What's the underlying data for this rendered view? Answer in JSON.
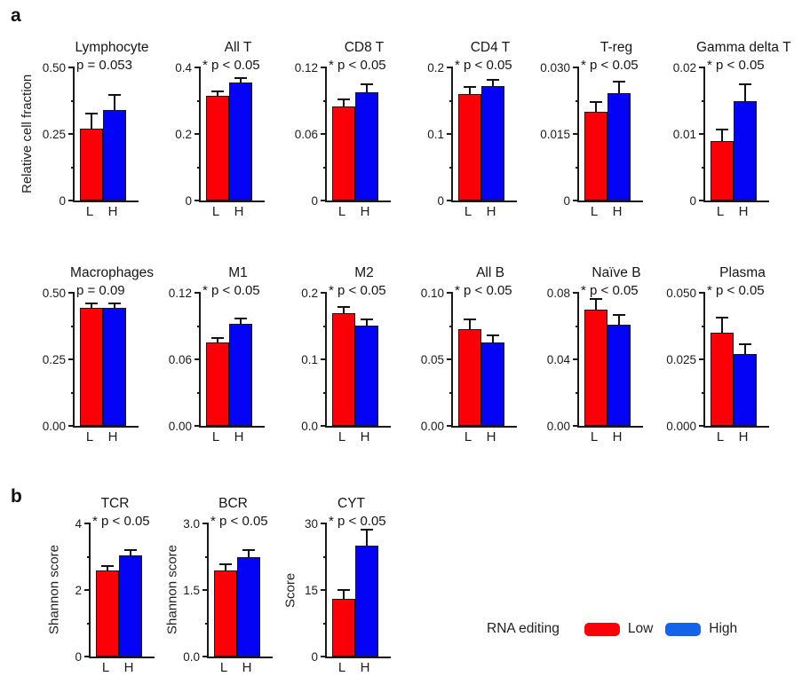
{
  "figure": {
    "panel_a": "a",
    "panel_b": "b"
  },
  "colors": {
    "low": "#fb0006",
    "high": "#0503f6",
    "axis": "#1a1a1a",
    "error_bar": "#111111",
    "legend_low_swatch": "#fb0006",
    "legend_high_swatch": "#1463e8"
  },
  "legend": {
    "title": "RNA editing",
    "items": [
      {
        "label": "Low",
        "color": "#fb0006"
      },
      {
        "label": "High",
        "color": "#1463e8"
      }
    ]
  },
  "group_labels": [
    "L",
    "H"
  ],
  "chart_data": [
    {
      "panel": "a",
      "row": "a1",
      "type": "bar",
      "title": "Lymphocyte",
      "significance": "p = 0.053",
      "ylabel": "Relative cell fraction",
      "ylim": [
        0,
        0.5
      ],
      "yticks": [
        {
          "value": 0,
          "label": "0"
        },
        {
          "value": 0.25,
          "label": "0.25"
        },
        {
          "value": 0.5,
          "label": "0.50"
        }
      ],
      "categories": [
        "L",
        "H"
      ],
      "bars": [
        {
          "category": "L",
          "group": "Low",
          "value": 0.27,
          "error": 0.06
        },
        {
          "category": "H",
          "group": "High",
          "value": 0.34,
          "error": 0.06
        }
      ]
    },
    {
      "panel": "a",
      "row": "a1",
      "type": "bar",
      "title": "All T",
      "significance": "* p < 0.05",
      "ylabel": "",
      "ylim": [
        0,
        0.4
      ],
      "yticks": [
        {
          "value": 0,
          "label": "0"
        },
        {
          "value": 0.2,
          "label": "0.2"
        },
        {
          "value": 0.4,
          "label": "0.4"
        }
      ],
      "categories": [
        "L",
        "H"
      ],
      "bars": [
        {
          "category": "L",
          "group": "Low",
          "value": 0.315,
          "error": 0.015
        },
        {
          "category": "H",
          "group": "High",
          "value": 0.355,
          "error": 0.015
        }
      ]
    },
    {
      "panel": "a",
      "row": "a1",
      "type": "bar",
      "title": "CD8 T",
      "significance": "* p < 0.05",
      "ylabel": "",
      "ylim": [
        0,
        0.12
      ],
      "yticks": [
        {
          "value": 0,
          "label": "0"
        },
        {
          "value": 0.06,
          "label": "0.06"
        },
        {
          "value": 0.12,
          "label": "0.12"
        }
      ],
      "categories": [
        "L",
        "H"
      ],
      "bars": [
        {
          "category": "L",
          "group": "Low",
          "value": 0.085,
          "error": 0.007
        },
        {
          "category": "H",
          "group": "High",
          "value": 0.098,
          "error": 0.008
        }
      ]
    },
    {
      "panel": "a",
      "row": "a1",
      "type": "bar",
      "title": "CD4 T",
      "significance": "* p < 0.05",
      "ylabel": "",
      "ylim": [
        0,
        0.2
      ],
      "yticks": [
        {
          "value": 0,
          "label": "0"
        },
        {
          "value": 0.1,
          "label": "0.1"
        },
        {
          "value": 0.2,
          "label": "0.2"
        }
      ],
      "categories": [
        "L",
        "H"
      ],
      "bars": [
        {
          "category": "L",
          "group": "Low",
          "value": 0.16,
          "error": 0.012
        },
        {
          "category": "H",
          "group": "High",
          "value": 0.172,
          "error": 0.011
        }
      ]
    },
    {
      "panel": "a",
      "row": "a1",
      "type": "bar",
      "title": "T-reg",
      "significance": "* p < 0.05",
      "ylabel": "",
      "ylim": [
        0,
        0.03
      ],
      "yticks": [
        {
          "value": 0,
          "label": "0"
        },
        {
          "value": 0.015,
          "label": "0.015"
        },
        {
          "value": 0.03,
          "label": "0.030"
        }
      ],
      "categories": [
        "L",
        "H"
      ],
      "bars": [
        {
          "category": "L",
          "group": "Low",
          "value": 0.02,
          "error": 0.0025
        },
        {
          "category": "H",
          "group": "High",
          "value": 0.0242,
          "error": 0.0028
        }
      ]
    },
    {
      "panel": "a",
      "row": "a1",
      "type": "bar",
      "title": "Gamma delta T",
      "significance": "* p < 0.05",
      "ylabel": "",
      "ylim": [
        0,
        0.02
      ],
      "yticks": [
        {
          "value": 0,
          "label": "0"
        },
        {
          "value": 0.01,
          "label": "0.01"
        },
        {
          "value": 0.02,
          "label": "0.02"
        }
      ],
      "categories": [
        "L",
        "H"
      ],
      "bars": [
        {
          "category": "L",
          "group": "Low",
          "value": 0.009,
          "error": 0.0018
        },
        {
          "category": "H",
          "group": "High",
          "value": 0.015,
          "error": 0.0026
        }
      ]
    },
    {
      "panel": "a",
      "row": "a2",
      "type": "bar",
      "title": "Macrophages",
      "significance": "p = 0.09",
      "ylabel": "",
      "ylim": [
        0,
        0.5
      ],
      "yticks": [
        {
          "value": 0,
          "label": "0.00"
        },
        {
          "value": 0.25,
          "label": "0.25"
        },
        {
          "value": 0.5,
          "label": "0.50"
        }
      ],
      "categories": [
        "L",
        "H"
      ],
      "bars": [
        {
          "category": "L",
          "group": "Low",
          "value": 0.445,
          "error": 0.02
        },
        {
          "category": "H",
          "group": "High",
          "value": 0.445,
          "error": 0.02
        }
      ]
    },
    {
      "panel": "a",
      "row": "a2",
      "type": "bar",
      "title": "M1",
      "significance": "* p < 0.05",
      "ylabel": "",
      "ylim": [
        0,
        0.12
      ],
      "yticks": [
        {
          "value": 0,
          "label": "0.00"
        },
        {
          "value": 0.06,
          "label": "0.06"
        },
        {
          "value": 0.12,
          "label": "0.12"
        }
      ],
      "categories": [
        "L",
        "H"
      ],
      "bars": [
        {
          "category": "L",
          "group": "Low",
          "value": 0.075,
          "error": 0.005
        },
        {
          "category": "H",
          "group": "High",
          "value": 0.092,
          "error": 0.006
        }
      ]
    },
    {
      "panel": "a",
      "row": "a2",
      "type": "bar",
      "title": "M2",
      "significance": "* p < 0.05",
      "ylabel": "",
      "ylim": [
        0,
        0.2
      ],
      "yticks": [
        {
          "value": 0,
          "label": "0.0"
        },
        {
          "value": 0.1,
          "label": "0.1"
        },
        {
          "value": 0.2,
          "label": "0.2"
        }
      ],
      "categories": [
        "L",
        "H"
      ],
      "bars": [
        {
          "category": "L",
          "group": "Low",
          "value": 0.17,
          "error": 0.01
        },
        {
          "category": "H",
          "group": "High",
          "value": 0.151,
          "error": 0.01
        }
      ]
    },
    {
      "panel": "a",
      "row": "a2",
      "type": "bar",
      "title": "All B",
      "significance": "* p < 0.05",
      "ylabel": "",
      "ylim": [
        0,
        0.1
      ],
      "yticks": [
        {
          "value": 0,
          "label": "0.00"
        },
        {
          "value": 0.05,
          "label": "0.05"
        },
        {
          "value": 0.1,
          "label": "0.10"
        }
      ],
      "categories": [
        "L",
        "H"
      ],
      "bars": [
        {
          "category": "L",
          "group": "Low",
          "value": 0.073,
          "error": 0.008
        },
        {
          "category": "H",
          "group": "High",
          "value": 0.063,
          "error": 0.006
        }
      ]
    },
    {
      "panel": "a",
      "row": "a2",
      "type": "bar",
      "title": "Naïve B",
      "significance": "* p < 0.05",
      "ylabel": "",
      "ylim": [
        0,
        0.08
      ],
      "yticks": [
        {
          "value": 0,
          "label": "0.00"
        },
        {
          "value": 0.04,
          "label": "0.04"
        },
        {
          "value": 0.08,
          "label": "0.08"
        }
      ],
      "categories": [
        "L",
        "H"
      ],
      "bars": [
        {
          "category": "L",
          "group": "Low",
          "value": 0.07,
          "error": 0.007
        },
        {
          "category": "H",
          "group": "High",
          "value": 0.061,
          "error": 0.006
        }
      ]
    },
    {
      "panel": "a",
      "row": "a2",
      "type": "bar",
      "title": "Plasma",
      "significance": "* p < 0.05",
      "ylabel": "",
      "ylim": [
        0,
        0.05
      ],
      "yticks": [
        {
          "value": 0,
          "label": "0.000"
        },
        {
          "value": 0.025,
          "label": "0.025"
        },
        {
          "value": 0.05,
          "label": "0.050"
        }
      ],
      "categories": [
        "L",
        "H"
      ],
      "bars": [
        {
          "category": "L",
          "group": "Low",
          "value": 0.035,
          "error": 0.006
        },
        {
          "category": "H",
          "group": "High",
          "value": 0.027,
          "error": 0.004
        }
      ]
    },
    {
      "panel": "b",
      "row": "b",
      "type": "bar",
      "title": "TCR",
      "significance": "* p < 0.05",
      "ylabel": "Shannon score",
      "ylim": [
        0,
        4
      ],
      "yticks": [
        {
          "value": 0,
          "label": "0"
        },
        {
          "value": 2,
          "label": "2"
        },
        {
          "value": 4,
          "label": "4"
        }
      ],
      "categories": [
        "L",
        "H"
      ],
      "bars": [
        {
          "category": "L",
          "group": "Low",
          "value": 2.6,
          "error": 0.15
        },
        {
          "category": "H",
          "group": "High",
          "value": 3.05,
          "error": 0.17
        }
      ]
    },
    {
      "panel": "b",
      "row": "b",
      "type": "bar",
      "title": "BCR",
      "significance": "* p < 0.05",
      "ylabel": "Shannon score",
      "ylim": [
        0,
        3
      ],
      "yticks": [
        {
          "value": 0,
          "label": "0.0"
        },
        {
          "value": 1.5,
          "label": "1.5"
        },
        {
          "value": 3,
          "label": "3.0"
        }
      ],
      "categories": [
        "L",
        "H"
      ],
      "bars": [
        {
          "category": "L",
          "group": "Low",
          "value": 1.95,
          "error": 0.15
        },
        {
          "category": "H",
          "group": "High",
          "value": 2.25,
          "error": 0.17
        }
      ]
    },
    {
      "panel": "b",
      "row": "b",
      "type": "bar",
      "title": "CYT",
      "significance": "* p < 0.05",
      "ylabel": "Score",
      "ylim": [
        0,
        30
      ],
      "yticks": [
        {
          "value": 0,
          "label": "0"
        },
        {
          "value": 15,
          "label": "15"
        },
        {
          "value": 30,
          "label": "30"
        }
      ],
      "categories": [
        "L",
        "H"
      ],
      "bars": [
        {
          "category": "L",
          "group": "Low",
          "value": 13,
          "error": 2.3
        },
        {
          "category": "H",
          "group": "High",
          "value": 25,
          "error": 3.8
        }
      ]
    }
  ]
}
